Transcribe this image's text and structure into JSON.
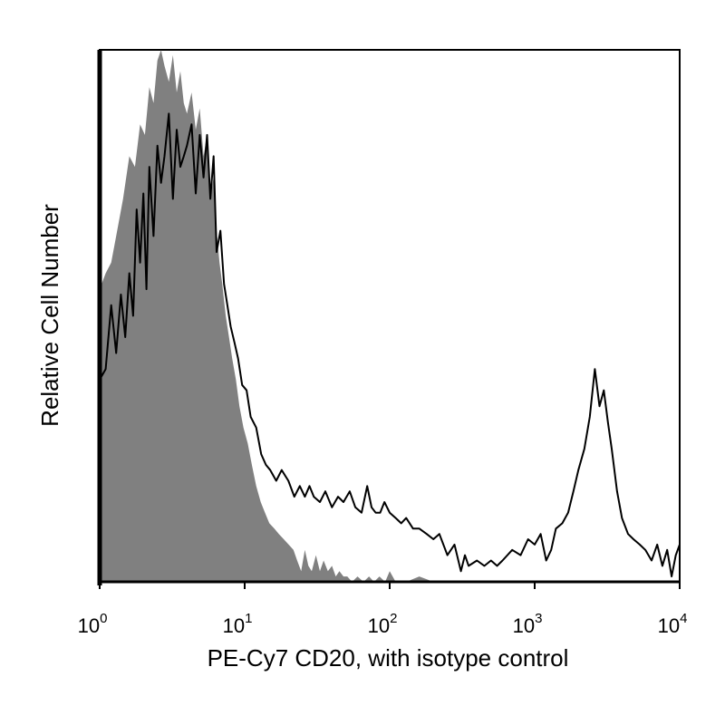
{
  "chart_data": {
    "type": "area",
    "title": "",
    "xlabel": "PE-Cy7 CD20, with isotype control",
    "ylabel": "Relative Cell Number",
    "x_scale": "log",
    "xlim": [
      1,
      10000
    ],
    "ylim": [
      0,
      100
    ],
    "grid": false,
    "x_ticks": [
      {
        "value": 1,
        "base": "10",
        "exp": "0"
      },
      {
        "value": 10,
        "base": "10",
        "exp": "1"
      },
      {
        "value": 100,
        "base": "10",
        "exp": "2"
      },
      {
        "value": 1000,
        "base": "10",
        "exp": "3"
      },
      {
        "value": 10000,
        "base": "10",
        "exp": "4"
      }
    ],
    "series": [
      {
        "style": "filled",
        "color": "#808080",
        "x": [
          1.0,
          1.1,
          1.2,
          1.3,
          1.45,
          1.6,
          1.75,
          1.9,
          2.05,
          2.2,
          2.35,
          2.5,
          2.65,
          2.8,
          3.0,
          3.2,
          3.4,
          3.6,
          3.8,
          4.0,
          4.3,
          4.6,
          4.9,
          5.2,
          5.5,
          5.8,
          6.1,
          6.4,
          6.7,
          7.0,
          7.4,
          7.8,
          8.2,
          8.7,
          9.2,
          9.8,
          10.5,
          11.2,
          12.0,
          12.9,
          13.8,
          14.8,
          16.0,
          17.2,
          18.6,
          20.1,
          21.7,
          23.0,
          24.5,
          26.0,
          27.5,
          29.0,
          31.0,
          33.0,
          35.0,
          37.5,
          40.0,
          42.5,
          45.0,
          48.0,
          51.0,
          55.0,
          60.0,
          66.0,
          72.0,
          78.0,
          85.0,
          93.0,
          100.0,
          110.0,
          130.0,
          160.0,
          200.0,
          10000.0
        ],
        "y": [
          55,
          58,
          60,
          65,
          72,
          80,
          78,
          86,
          84,
          93,
          90,
          98,
          100,
          97,
          94,
          99,
          92,
          96,
          90,
          88,
          92,
          85,
          89,
          80,
          84,
          72,
          76,
          66,
          60,
          56,
          50,
          46,
          42,
          38,
          33,
          29,
          26,
          22,
          18,
          15,
          13,
          11,
          10,
          9,
          8,
          7,
          6,
          4,
          2,
          6,
          3,
          2,
          5,
          2,
          4,
          2,
          3,
          1,
          2,
          1,
          1,
          0,
          1,
          0,
          1,
          0,
          1,
          0,
          2,
          0,
          0,
          1,
          0,
          0
        ]
      },
      {
        "style": "line",
        "color": "#000000",
        "x": [
          1.0,
          1.1,
          1.2,
          1.3,
          1.4,
          1.5,
          1.6,
          1.7,
          1.8,
          1.9,
          2.0,
          2.1,
          2.2,
          2.35,
          2.5,
          2.65,
          2.8,
          3.0,
          3.2,
          3.4,
          3.6,
          3.8,
          4.0,
          4.3,
          4.6,
          4.9,
          5.2,
          5.5,
          5.8,
          6.1,
          6.4,
          6.8,
          7.2,
          7.6,
          8.0,
          8.5,
          9.0,
          9.6,
          10.3,
          11.0,
          12.0,
          13.0,
          14.0,
          15.0,
          16.5,
          18.0,
          20.0,
          22.0,
          24.0,
          26.0,
          28.0,
          30.0,
          33.0,
          36.0,
          40.0,
          44.0,
          48.0,
          53.0,
          58.0,
          64.0,
          70.0,
          75.0,
          80.0,
          86.0,
          92.0,
          100.0,
          110.0,
          120.0,
          130.0,
          145.0,
          160.0,
          180.0,
          200.0,
          220.0,
          250.0,
          280.0,
          310.0,
          330.0,
          350.0,
          400.0,
          450.0,
          500.0,
          550.0,
          600.0,
          700.0,
          800.0,
          900.0,
          1000.0,
          1100.0,
          1200.0,
          1300.0,
          1400.0,
          1550.0,
          1700.0,
          1850.0,
          2000.0,
          2200.0,
          2400.0,
          2600.0,
          2800.0,
          3000.0,
          3200.0,
          3400.0,
          3700.0,
          4000.0,
          4400.0,
          4800.0,
          5300.0,
          5800.0,
          6400.0,
          7000.0,
          7600.0,
          8200.0,
          8800.0,
          9400.0,
          10000.0
        ],
        "y": [
          38,
          40,
          52,
          43,
          54,
          46,
          58,
          50,
          70,
          60,
          73,
          55,
          78,
          65,
          82,
          75,
          80,
          88,
          72,
          85,
          78,
          80,
          82,
          86,
          73,
          84,
          76,
          84,
          72,
          80,
          62,
          66,
          56,
          52,
          48,
          45,
          42,
          37,
          36,
          31,
          29,
          24,
          22,
          21,
          19,
          21,
          19,
          16,
          18,
          16,
          18,
          16,
          15,
          17,
          14,
          16,
          15,
          17,
          14,
          13,
          18,
          14,
          13,
          13,
          15,
          13,
          12,
          11,
          12,
          10,
          10,
          9,
          8,
          9,
          5,
          7,
          2,
          5,
          3,
          4,
          3,
          4,
          3,
          4,
          6,
          5,
          8,
          7,
          9,
          4,
          6,
          10,
          11,
          13,
          17,
          21,
          25,
          31,
          40,
          33,
          36,
          30,
          25,
          17,
          12,
          9,
          8,
          7,
          6,
          4,
          7,
          3,
          6,
          1,
          5,
          7
        ]
      }
    ]
  }
}
